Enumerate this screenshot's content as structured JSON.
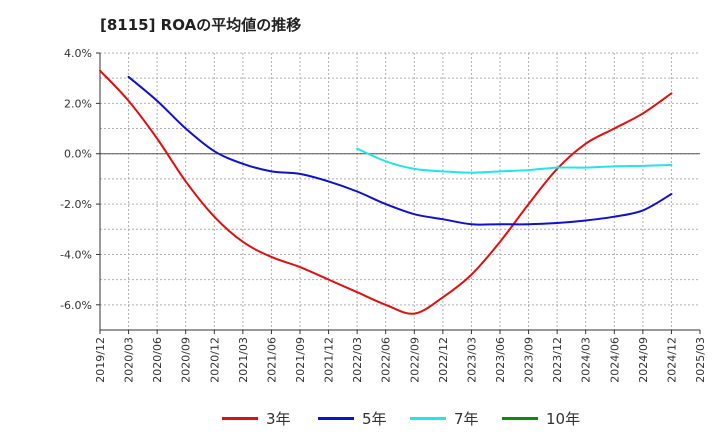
{
  "title": "[8115]  ROAの平均値の推移",
  "chart_data": {
    "type": "line",
    "title": "[8115]  ROAの平均値の推移",
    "xlabel": "",
    "ylabel": "",
    "ylim": [
      -7.0,
      4.0
    ],
    "yticks": [
      "4.0%",
      "2.0%",
      "0.0%",
      "-2.0%",
      "-4.0%",
      "-6.0%"
    ],
    "ytick_values": [
      4,
      2,
      0,
      -2,
      -4,
      -6
    ],
    "x_tick_labels": [
      "2019/12",
      "2020/03",
      "2020/06",
      "2020/09",
      "2020/12",
      "2021/03",
      "2021/06",
      "2021/09",
      "2021/12",
      "2022/03",
      "2022/06",
      "2022/09",
      "2022/12",
      "2023/03",
      "2023/06",
      "2023/09",
      "2023/12",
      "2024/03",
      "2024/06",
      "2024/09",
      "2024/12",
      "2025/03"
    ],
    "grid": true,
    "legend_position": "bottom",
    "series": [
      {
        "name": "3年",
        "color": "#dd1111",
        "values": [
          3.3,
          2.1,
          0.6,
          -1.1,
          -2.5,
          -3.5,
          -4.1,
          -4.5,
          -5.0,
          -5.5,
          -6.0,
          -6.35,
          -5.7,
          -4.8,
          -3.5,
          -2.0,
          -0.6,
          0.4,
          1.0,
          1.6,
          2.4,
          null
        ]
      },
      {
        "name": "5年",
        "color": "#1111cc",
        "values": [
          null,
          3.05,
          2.1,
          1.0,
          0.1,
          -0.4,
          -0.7,
          -0.8,
          -1.1,
          -1.5,
          -2.0,
          -2.4,
          -2.6,
          -2.8,
          -2.8,
          -2.8,
          -2.75,
          -2.65,
          -2.5,
          -2.25,
          -1.6,
          null
        ]
      },
      {
        "name": "7年",
        "color": "#22e5e5",
        "values": [
          null,
          null,
          null,
          null,
          null,
          null,
          null,
          null,
          null,
          0.2,
          -0.3,
          -0.6,
          -0.7,
          -0.75,
          -0.7,
          -0.65,
          -0.55,
          -0.55,
          -0.5,
          -0.48,
          -0.45,
          null
        ]
      },
      {
        "name": "10年",
        "color": "#118811",
        "values": []
      }
    ]
  }
}
